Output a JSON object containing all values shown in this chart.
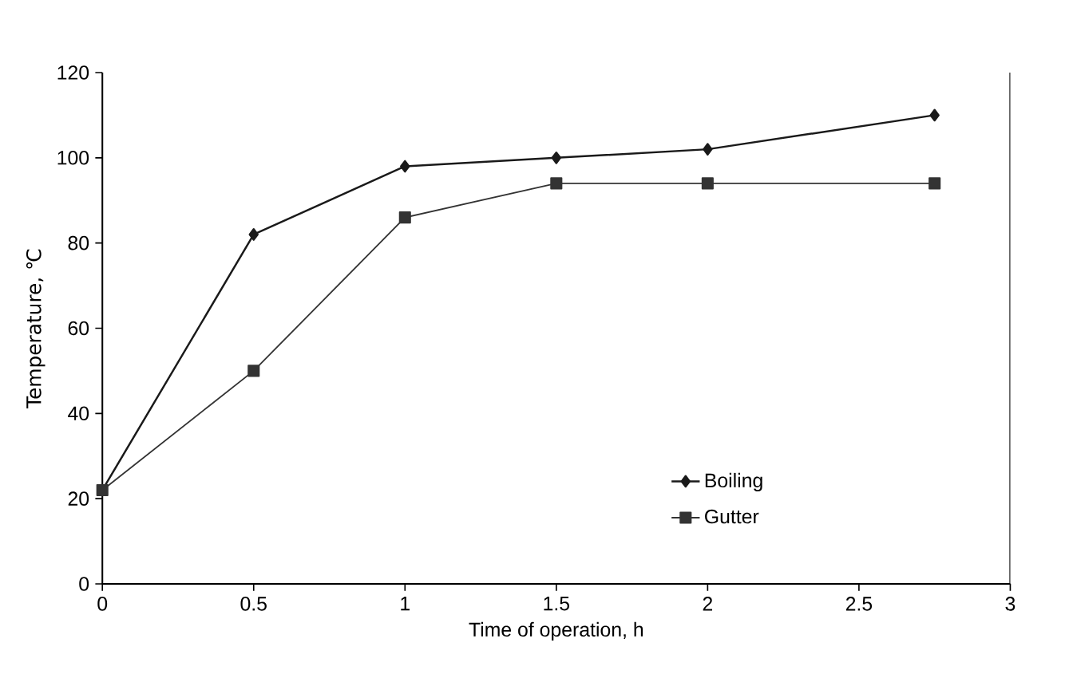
{
  "chart_data": {
    "type": "line",
    "xlabel": "Time of operation, h",
    "ylabel": "Temperature, ℃",
    "xlim": [
      0,
      3
    ],
    "xticks": [
      0,
      0.5,
      1,
      1.5,
      2,
      2.5,
      3
    ],
    "ylim": [
      0,
      120
    ],
    "yticks": [
      0,
      20,
      40,
      60,
      80,
      100,
      120
    ],
    "grid": false,
    "legend": "bottom right",
    "series": [
      {
        "name": "Boiling",
        "color": "#1a1a1a",
        "marker": "diamond",
        "x": [
          0,
          0.5,
          1,
          1.5,
          2,
          2.75
        ],
        "values": [
          22,
          82,
          98,
          100,
          102,
          110
        ]
      },
      {
        "name": "Gutter",
        "color": "#333333",
        "marker": "square",
        "x": [
          0,
          0.5,
          1,
          1.5,
          2,
          2.75
        ],
        "values": [
          22,
          50,
          86,
          94,
          94,
          94
        ]
      }
    ]
  }
}
